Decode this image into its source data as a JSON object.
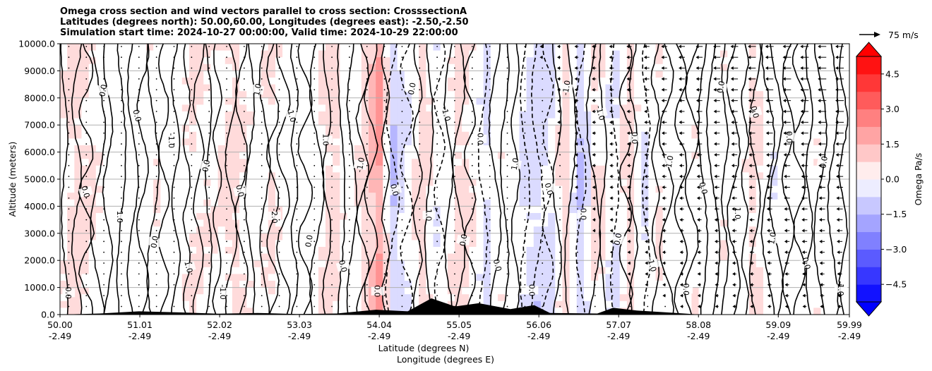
{
  "chart_data": {
    "type": "contourf",
    "title": [
      "Omega cross section and wind vectors parallel to cross section: CrosssectionA",
      "Latitudes (degrees north): 50.00,60.00, Longitudes (degrees east): -2.50,-2.50",
      "Simulation start time: 2024-10-27 00:00:00, Valid time: 2024-10-29 22:00:00"
    ],
    "xlabel_lines": [
      "Latitude (degrees N)",
      "Longitude (degrees E)"
    ],
    "ylabel": "Altitude (meters)",
    "ylim": [
      0,
      10000
    ],
    "xlim": [
      50.0,
      59.99
    ],
    "y_ticks": [
      "0.0",
      "1000.0",
      "2000.0",
      "3000.0",
      "4000.0",
      "5000.0",
      "6000.0",
      "7000.0",
      "8000.0",
      "9000.0",
      "10000.0"
    ],
    "y_tick_values": [
      0,
      1000,
      2000,
      3000,
      4000,
      5000,
      6000,
      7000,
      8000,
      9000,
      10000
    ],
    "x_ticks": [
      {
        "lat": "50.00",
        "lon": "-2.49",
        "value": 50.0
      },
      {
        "lat": "51.01",
        "lon": "-2.49",
        "value": 51.01
      },
      {
        "lat": "52.02",
        "lon": "-2.49",
        "value": 52.02
      },
      {
        "lat": "53.03",
        "lon": "-2.49",
        "value": 53.03
      },
      {
        "lat": "54.04",
        "lon": "-2.49",
        "value": 54.04
      },
      {
        "lat": "55.05",
        "lon": "-2.49",
        "value": 55.05
      },
      {
        "lat": "56.06",
        "lon": "-2.49",
        "value": 56.06
      },
      {
        "lat": "57.07",
        "lon": "-2.49",
        "value": 57.07
      },
      {
        "lat": "58.08",
        "lon": "-2.49",
        "value": 58.08
      },
      {
        "lat": "59.09",
        "lon": "-2.49",
        "value": 59.09
      },
      {
        "lat": "59.99",
        "lon": "-2.49",
        "value": 59.99
      }
    ],
    "grid": "horizontal",
    "colorbar": {
      "label": "Omega Pa/s",
      "colormap": "bwr",
      "range": [
        -5.25,
        5.25
      ],
      "ticks": [
        "4.5",
        "3.0",
        "1.5",
        "0.0",
        "−1.5",
        "−3.0",
        "−4.5"
      ],
      "tick_values": [
        4.5,
        3.0,
        1.5,
        0.0,
        -1.5,
        -3.0,
        -4.5
      ],
      "extend": "both",
      "colors": {
        "min": "#0000ff",
        "mid": "#ffffff",
        "max": "#ff0000"
      }
    },
    "quiver_key": {
      "label": "75 m/s",
      "value": 75
    },
    "contour_labels": [
      "0.0",
      "0.0",
      "0.0",
      "1.0",
      "0.0",
      "0.0",
      "-1.0",
      "1.0",
      "0.0",
      "-1.0",
      "0.0",
      "1.0",
      "-2.0",
      "-1.0",
      "0.0",
      "1.0",
      "0.0",
      "-1.0",
      "0.0",
      "0.0",
      "0.0",
      "1.0",
      "-1.0",
      "0.0",
      "0.0",
      "0.0",
      "1.0",
      "0.0",
      "0.0",
      "-1.0",
      "0.0",
      "-1.0",
      "0.0",
      "0.0",
      "-1.0",
      "-1.0",
      "0.0",
      "0.0",
      "0.0",
      "1.0",
      "0.0",
      "1.0",
      "0.0",
      "0.0",
      "0.0",
      "-1.0"
    ],
    "contour_levels_solid": [
      0.0,
      1.0,
      2.0
    ],
    "contour_levels_dashed": [
      -1.0,
      -2.0
    ],
    "omega_columns": [
      {
        "lat": 50.0,
        "low": 0.0,
        "high": 0.3
      },
      {
        "lat": 50.2,
        "low": 0.4,
        "high": 0.8
      },
      {
        "lat": 50.45,
        "low": 0.2,
        "high": 0.5
      },
      {
        "lat": 50.7,
        "low": -0.3,
        "high": 0.1
      },
      {
        "lat": 50.95,
        "low": -0.2,
        "high": 0.2
      },
      {
        "lat": 51.2,
        "low": 0.2,
        "high": 0.4
      },
      {
        "lat": 51.45,
        "low": 0.1,
        "high": 0.2
      },
      {
        "lat": 51.7,
        "low": 0.3,
        "high": 0.5
      },
      {
        "lat": 51.95,
        "low": 0.2,
        "high": 0.4
      },
      {
        "lat": 52.2,
        "low": 0.4,
        "high": 0.6
      },
      {
        "lat": 52.45,
        "low": 0.1,
        "high": 0.3
      },
      {
        "lat": 52.7,
        "low": 0.3,
        "high": 0.5
      },
      {
        "lat": 52.95,
        "low": -0.2,
        "high": 0.1
      },
      {
        "lat": 53.2,
        "low": 0.0,
        "high": 0.2
      },
      {
        "lat": 53.45,
        "low": 0.5,
        "high": 0.7
      },
      {
        "lat": 53.7,
        "low": -0.3,
        "high": 0.1
      },
      {
        "lat": 53.9,
        "low": 0.6,
        "high": 1.2
      },
      {
        "lat": 54.05,
        "low": 1.5,
        "high": 2.5
      },
      {
        "lat": 54.2,
        "low": -1.5,
        "high": -0.8
      },
      {
        "lat": 54.4,
        "low": -0.5,
        "high": 0.2
      },
      {
        "lat": 54.6,
        "low": 0.6,
        "high": 1.0
      },
      {
        "lat": 54.8,
        "low": -0.6,
        "high": -0.1
      },
      {
        "lat": 55.0,
        "low": 0.4,
        "high": 0.6
      },
      {
        "lat": 55.2,
        "low": 0.3,
        "high": 0.5
      },
      {
        "lat": 55.4,
        "low": -0.8,
        "high": -0.3
      },
      {
        "lat": 55.6,
        "low": 0.2,
        "high": 0.4
      },
      {
        "lat": 55.8,
        "low": -0.4,
        "high": 0.0
      },
      {
        "lat": 56.0,
        "low": -1.2,
        "high": -0.4
      },
      {
        "lat": 56.2,
        "low": -0.8,
        "high": -0.2
      },
      {
        "lat": 56.4,
        "low": 0.6,
        "high": 1.0
      },
      {
        "lat": 56.6,
        "low": -1.6,
        "high": -0.6
      },
      {
        "lat": 56.8,
        "low": 0.6,
        "high": 0.9
      },
      {
        "lat": 57.0,
        "low": -0.8,
        "high": -0.3
      },
      {
        "lat": 57.2,
        "low": 0.7,
        "high": 1.0
      },
      {
        "lat": 57.4,
        "low": -0.6,
        "high": -0.2
      },
      {
        "lat": 57.6,
        "low": 0.3,
        "high": 0.5
      },
      {
        "lat": 57.8,
        "low": -0.4,
        "high": -0.1
      },
      {
        "lat": 58.0,
        "low": 0.3,
        "high": 0.5
      },
      {
        "lat": 58.2,
        "low": -0.3,
        "high": 0.0
      },
      {
        "lat": 58.4,
        "low": 0.2,
        "high": 0.4
      },
      {
        "lat": 58.6,
        "low": -0.2,
        "high": 0.1
      },
      {
        "lat": 58.8,
        "low": 0.5,
        "high": 0.8
      },
      {
        "lat": 59.0,
        "low": -0.5,
        "high": -0.2
      },
      {
        "lat": 59.2,
        "low": 0.1,
        "high": 0.3
      },
      {
        "lat": 59.4,
        "low": -0.3,
        "high": 0.0
      },
      {
        "lat": 59.6,
        "low": 0.2,
        "high": 0.4
      },
      {
        "lat": 59.8,
        "low": -0.2,
        "high": 0.1
      },
      {
        "lat": 59.99,
        "low": 0.0,
        "high": 0.2
      }
    ],
    "terrain": [
      {
        "lat": 50.0,
        "height": 0
      },
      {
        "lat": 50.5,
        "height": 40
      },
      {
        "lat": 51.0,
        "height": 120
      },
      {
        "lat": 51.5,
        "height": 80
      },
      {
        "lat": 52.0,
        "height": 30
      },
      {
        "lat": 52.5,
        "height": 60
      },
      {
        "lat": 53.0,
        "height": 20
      },
      {
        "lat": 53.5,
        "height": 40
      },
      {
        "lat": 54.0,
        "height": 180
      },
      {
        "lat": 54.4,
        "height": 120
      },
      {
        "lat": 54.7,
        "height": 600
      },
      {
        "lat": 55.0,
        "height": 300
      },
      {
        "lat": 55.3,
        "height": 420
      },
      {
        "lat": 55.7,
        "height": 200
      },
      {
        "lat": 56.0,
        "height": 350
      },
      {
        "lat": 56.2,
        "height": 60
      },
      {
        "lat": 56.8,
        "height": 40
      },
      {
        "lat": 57.0,
        "height": 250
      },
      {
        "lat": 57.3,
        "height": 150
      },
      {
        "lat": 57.8,
        "height": 60
      },
      {
        "lat": 58.1,
        "height": 0
      },
      {
        "lat": 59.99,
        "height": 0
      }
    ]
  }
}
